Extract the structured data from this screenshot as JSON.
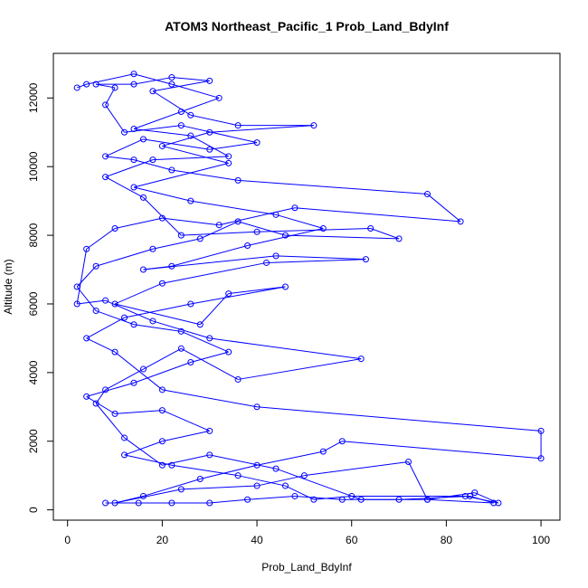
{
  "chart_data": {
    "type": "line",
    "title": "ATOM3 Northeast_Pacific_1 Prob_Land_BdyInf",
    "xlabel": "Prob_Land_BdyInf",
    "ylabel": "Altitude (m)",
    "xlim": [
      -3,
      104
    ],
    "ylim": [
      -300,
      13300
    ],
    "xticks": [
      0,
      20,
      40,
      60,
      80,
      100
    ],
    "yticks": [
      0,
      2000,
      4000,
      6000,
      8000,
      10000,
      12000
    ],
    "grid": false,
    "series_color": "#0000ff",
    "marker": "open-circle",
    "series": [
      {
        "values": [
          [
            8,
            200
          ],
          [
            15,
            200
          ],
          [
            22,
            200
          ],
          [
            30,
            200
          ],
          [
            38,
            300
          ],
          [
            48,
            400
          ],
          [
            58,
            300
          ],
          [
            70,
            300
          ],
          [
            85,
            400
          ],
          [
            90,
            200
          ],
          [
            76,
            300
          ],
          [
            62,
            300
          ],
          [
            44,
            1200
          ],
          [
            30,
            1600
          ],
          [
            20,
            1300
          ],
          [
            12,
            2100
          ],
          [
            6,
            3100
          ],
          [
            8,
            3500
          ],
          [
            16,
            4100
          ],
          [
            24,
            4700
          ],
          [
            36,
            3800
          ],
          [
            62,
            4400
          ],
          [
            30,
            5000
          ],
          [
            18,
            5500
          ],
          [
            8,
            6100
          ],
          [
            2,
            6000
          ],
          [
            4,
            7600
          ],
          [
            10,
            8200
          ],
          [
            20,
            8500
          ],
          [
            32,
            8300
          ],
          [
            48,
            8800
          ],
          [
            83,
            8400
          ],
          [
            76,
            9200
          ],
          [
            36,
            9600
          ],
          [
            22,
            9900
          ],
          [
            14,
            10200
          ],
          [
            8,
            10300
          ],
          [
            16,
            10800
          ],
          [
            30,
            10500
          ],
          [
            40,
            10700
          ],
          [
            24,
            11200
          ],
          [
            12,
            11000
          ],
          [
            8,
            11800
          ],
          [
            10,
            12300
          ],
          [
            6,
            12400
          ],
          [
            14,
            12400
          ],
          [
            22,
            12600
          ],
          [
            30,
            12500
          ],
          [
            18,
            12200
          ],
          [
            26,
            11500
          ],
          [
            36,
            11200
          ],
          [
            52,
            11200
          ],
          [
            30,
            11000
          ],
          [
            20,
            10600
          ],
          [
            34,
            10100
          ],
          [
            14,
            9400
          ],
          [
            26,
            9000
          ],
          [
            44,
            8600
          ],
          [
            54,
            8200
          ],
          [
            38,
            7700
          ],
          [
            22,
            7100
          ],
          [
            16,
            7000
          ],
          [
            44,
            7400
          ],
          [
            63,
            7300
          ],
          [
            42,
            7200
          ],
          [
            20,
            6600
          ],
          [
            10,
            6000
          ],
          [
            28,
            5400
          ],
          [
            34,
            6300
          ],
          [
            46,
            6500
          ],
          [
            26,
            6000
          ],
          [
            12,
            5600
          ],
          [
            4,
            5000
          ],
          [
            10,
            4600
          ],
          [
            20,
            3500
          ],
          [
            40,
            3000
          ],
          [
            100,
            2300
          ],
          [
            100,
            1500
          ],
          [
            58,
            2000
          ],
          [
            54,
            1700
          ],
          [
            40,
            1300
          ],
          [
            28,
            900
          ],
          [
            16,
            400
          ],
          [
            10,
            200
          ],
          [
            24,
            600
          ],
          [
            40,
            700
          ],
          [
            50,
            1000
          ],
          [
            72,
            1400
          ],
          [
            76,
            300
          ],
          [
            86,
            500
          ],
          [
            91,
            200
          ],
          [
            84,
            400
          ],
          [
            60,
            400
          ],
          [
            52,
            300
          ],
          [
            46,
            700
          ],
          [
            36,
            1000
          ],
          [
            22,
            1300
          ],
          [
            12,
            1600
          ],
          [
            20,
            2000
          ],
          [
            30,
            2300
          ],
          [
            20,
            2900
          ],
          [
            10,
            2800
          ],
          [
            4,
            3300
          ],
          [
            14,
            3700
          ],
          [
            26,
            4300
          ],
          [
            34,
            4600
          ],
          [
            24,
            5200
          ],
          [
            14,
            5400
          ],
          [
            6,
            5800
          ],
          [
            2,
            6500
          ],
          [
            6,
            7100
          ],
          [
            18,
            7600
          ],
          [
            28,
            7900
          ],
          [
            36,
            8400
          ],
          [
            46,
            8000
          ],
          [
            70,
            7900
          ],
          [
            64,
            8200
          ],
          [
            40,
            8100
          ],
          [
            24,
            8000
          ],
          [
            16,
            9100
          ],
          [
            8,
            9700
          ],
          [
            18,
            10200
          ],
          [
            34,
            10300
          ],
          [
            26,
            10900
          ],
          [
            14,
            11100
          ],
          [
            24,
            11600
          ],
          [
            32,
            12000
          ],
          [
            22,
            12400
          ],
          [
            14,
            12700
          ],
          [
            4,
            12400
          ],
          [
            2,
            12300
          ]
        ]
      }
    ]
  }
}
